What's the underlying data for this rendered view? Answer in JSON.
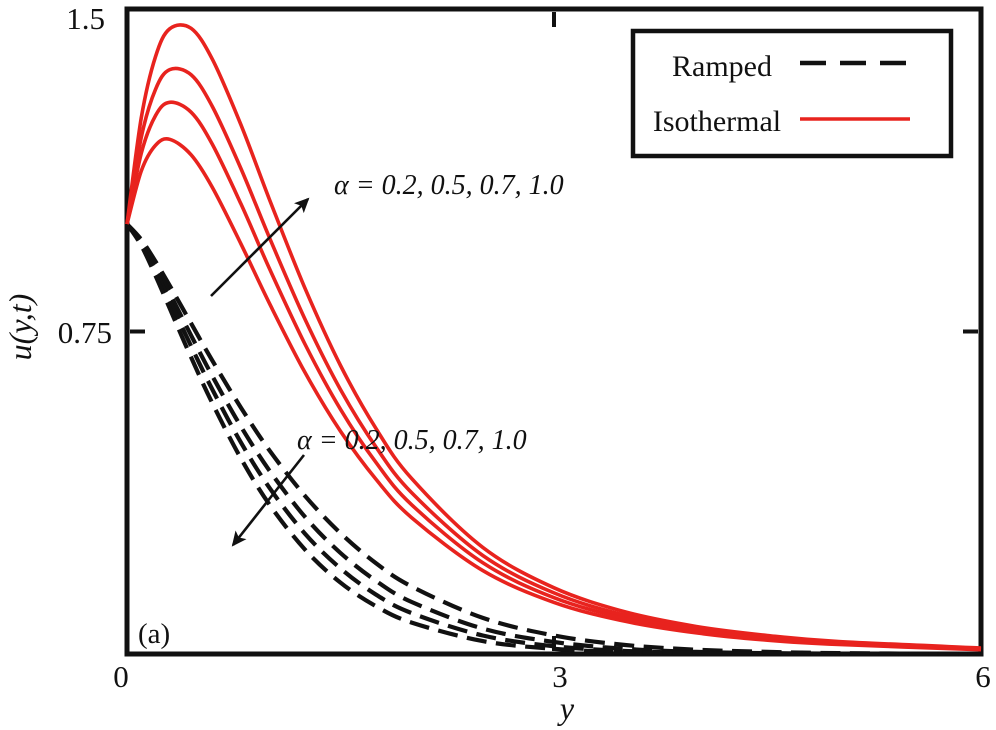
{
  "figure": {
    "panel_label": "(a)",
    "x_axis": {
      "label": "y",
      "ticks": [
        "0",
        "3",
        "6"
      ]
    },
    "y_axis": {
      "label": "u(y,t)",
      "ticks": [
        "1.5",
        "0.75"
      ]
    },
    "annotations": {
      "isothermal_group": "α = 0.2, 0.5, 0.7, 1.0",
      "ramped_group": "α = 0.2, 0.5, 0.7, 1.0"
    },
    "legend": [
      {
        "label": "Ramped",
        "style": "dashed",
        "color": "#111111"
      },
      {
        "label": "Isothermal",
        "style": "solid",
        "color": "#e8231e"
      }
    ],
    "colors": {
      "isothermal": "#e8231e",
      "ramped": "#111111",
      "frame": "#111111"
    }
  },
  "chart_data": {
    "type": "line",
    "title": "",
    "xlabel": "y",
    "ylabel": "u(y,t)",
    "xlim": [
      0,
      6
    ],
    "ylim": [
      0,
      1.5
    ],
    "grid": false,
    "legend_position": "upper right",
    "alpha_values": [
      0.2,
      0.5,
      0.7,
      1.0
    ],
    "x_samples": [
      0,
      0.1,
      0.2,
      0.3,
      0.45,
      0.6,
      0.8,
      1,
      1.25,
      1.5,
      1.75,
      2,
      2.5,
      3,
      3.5,
      4,
      4.5,
      5,
      6
    ],
    "series": [
      {
        "name": "Ramped α=0.2",
        "group": "ramped",
        "alpha": 0.2,
        "color": "#111111",
        "line_style": "dashed",
        "values": [
          1,
          0.964,
          0.913,
          0.857,
          0.769,
          0.682,
          0.573,
          0.474,
          0.368,
          0.281,
          0.211,
          0.157,
          0.084,
          0.043,
          0.021,
          0.01,
          0.005,
          0.002,
          0
        ]
      },
      {
        "name": "Ramped α=0.5",
        "group": "ramped",
        "alpha": 0.5,
        "color": "#111111",
        "line_style": "dashed",
        "values": [
          1,
          0.959,
          0.902,
          0.839,
          0.741,
          0.646,
          0.529,
          0.427,
          0.319,
          0.235,
          0.17,
          0.121,
          0.059,
          0.028,
          0.012,
          0.005,
          0.002,
          0.001,
          0
        ]
      },
      {
        "name": "Ramped α=0.7",
        "group": "ramped",
        "alpha": 0.7,
        "color": "#111111",
        "line_style": "dashed",
        "values": [
          1,
          0.954,
          0.891,
          0.822,
          0.716,
          0.615,
          0.492,
          0.387,
          0.28,
          0.199,
          0.138,
          0.095,
          0.043,
          0.018,
          0.007,
          0.003,
          0.001,
          0,
          0
        ]
      },
      {
        "name": "Ramped α=1.0",
        "group": "ramped",
        "alpha": 1.0,
        "color": "#111111",
        "line_style": "dashed",
        "values": [
          1,
          0.95,
          0.88,
          0.804,
          0.69,
          0.583,
          0.455,
          0.348,
          0.243,
          0.166,
          0.111,
          0.073,
          0.03,
          0.012,
          0.004,
          0.002,
          0.001,
          0,
          0
        ]
      },
      {
        "name": "Isothermal α=0.2",
        "group": "isothermal",
        "alpha": 0.2,
        "color": "#e8231e",
        "line_style": "solid",
        "values": [
          1,
          1.123,
          1.183,
          1.197,
          1.161,
          1.085,
          0.954,
          0.816,
          0.655,
          0.518,
          0.406,
          0.317,
          0.194,
          0.12,
          0.076,
          0.049,
          0.032,
          0.022,
          0.01
        ]
      },
      {
        "name": "Isothermal α=0.5",
        "group": "isothermal",
        "alpha": 0.5,
        "color": "#e8231e",
        "line_style": "solid",
        "values": [
          1,
          1.164,
          1.252,
          1.283,
          1.26,
          1.185,
          1.047,
          0.897,
          0.721,
          0.569,
          0.445,
          0.347,
          0.212,
          0.131,
          0.083,
          0.054,
          0.035,
          0.024,
          0.011
        ]
      },
      {
        "name": "Isothermal α=0.7",
        "group": "isothermal",
        "alpha": 0.7,
        "color": "#e8231e",
        "line_style": "solid",
        "values": [
          1,
          1.201,
          1.313,
          1.359,
          1.347,
          1.273,
          1.129,
          0.969,
          0.779,
          0.615,
          0.481,
          0.375,
          0.229,
          0.142,
          0.09,
          0.058,
          0.039,
          0.026,
          0.012
        ]
      },
      {
        "name": "Isothermal α=1.0",
        "group": "isothermal",
        "alpha": 1.0,
        "color": "#e8231e",
        "line_style": "solid",
        "values": [
          1,
          1.246,
          1.389,
          1.454,
          1.455,
          1.383,
          1.231,
          1.058,
          0.851,
          0.671,
          0.524,
          0.408,
          0.248,
          0.154,
          0.098,
          0.064,
          0.043,
          0.029,
          0.014
        ]
      }
    ]
  }
}
